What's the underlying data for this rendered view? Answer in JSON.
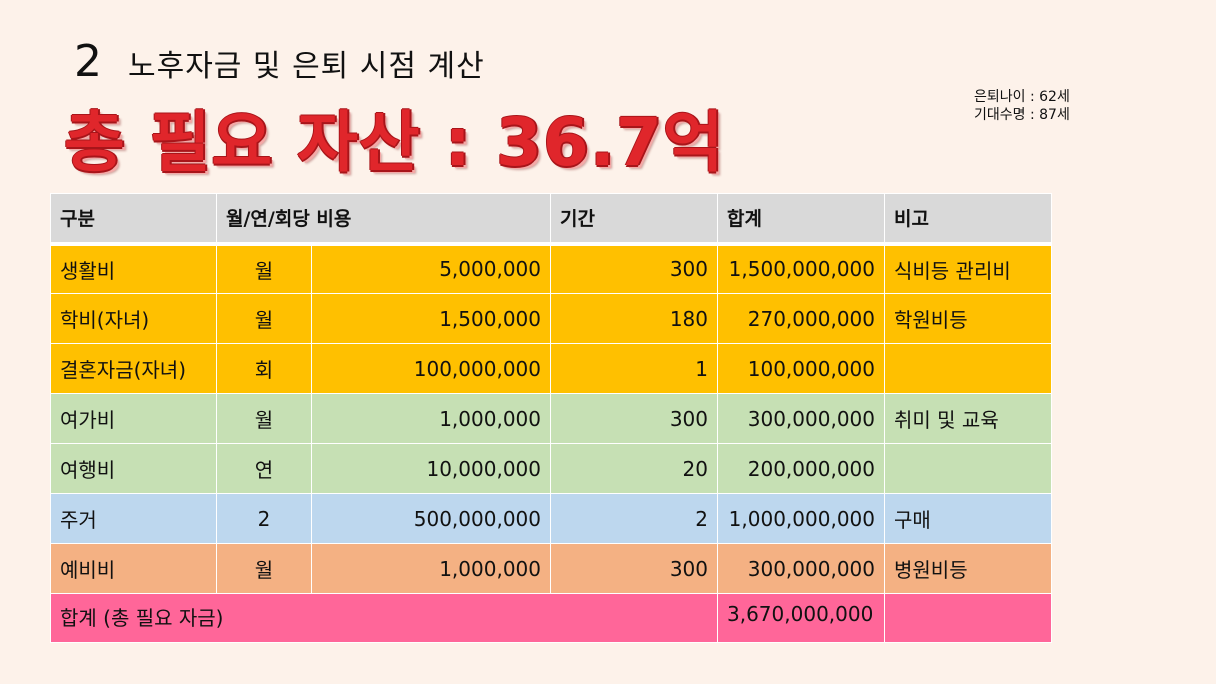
{
  "slide": {
    "section_number": "2",
    "section_title": "노후자금 및 은퇴 시점 계산",
    "headline": "총 필요 자산 : 36.7억",
    "info": {
      "retirement_age": "은퇴나이 : 62세",
      "life_expectancy": "기대수명 : 87세"
    }
  },
  "table": {
    "headers": {
      "category": "구분",
      "cost_per": "월/연/회당 비용",
      "period": "기간",
      "sum": "합계",
      "note": "비고"
    },
    "rows": [
      {
        "category": "생활비",
        "unit": "월",
        "cost": "5,000,000",
        "period": "300",
        "sum": "1,500,000,000",
        "note": "식비등 관리비"
      },
      {
        "category": "학비(자녀)",
        "unit": "월",
        "cost": "1,500,000",
        "period": "180",
        "sum": "270,000,000",
        "note": "학원비등"
      },
      {
        "category": "결혼자금(자녀)",
        "unit": "회",
        "cost": "100,000,000",
        "period": "1",
        "sum": "100,000,000",
        "note": ""
      },
      {
        "category": "여가비",
        "unit": "월",
        "cost": "1,000,000",
        "period": "300",
        "sum": "300,000,000",
        "note": "취미 및 교육"
      },
      {
        "category": "여행비",
        "unit": "연",
        "cost": "10,000,000",
        "period": "20",
        "sum": "200,000,000",
        "note": ""
      },
      {
        "category": "주거",
        "unit": "2",
        "cost": "500,000,000",
        "period": "2",
        "sum": "1,000,000,000",
        "note": "구매"
      },
      {
        "category": "예비비",
        "unit": "월",
        "cost": "1,000,000",
        "period": "300",
        "sum": "300,000,000",
        "note": "병원비등"
      }
    ],
    "total": {
      "label": "합계 (총 필요 자금)",
      "sum": "3,670,000,000",
      "note": ""
    },
    "colors": {
      "header": "#d9d9d9",
      "essential": "#ffc000",
      "leisure": "#c6e0b4",
      "housing": "#bdd7ee",
      "reserve": "#f4b183",
      "total": "#ff6699",
      "headline": "#e0262b",
      "background": "#fdf2ea"
    }
  }
}
